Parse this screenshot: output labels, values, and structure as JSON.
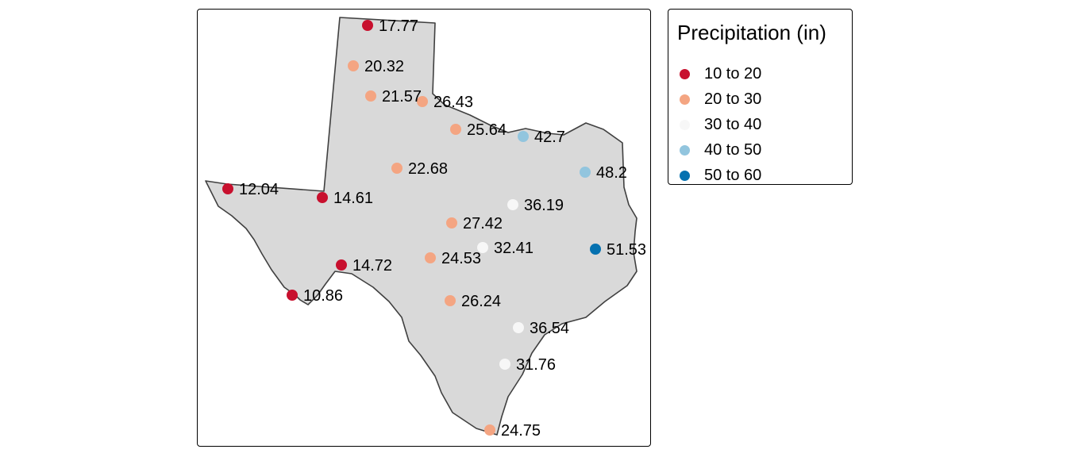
{
  "legend": {
    "title": "Precipitation (in)",
    "classes": [
      {
        "label": "10 to 20",
        "color": "#C8102E",
        "min": 10,
        "max": 20
      },
      {
        "label": "20 to 30",
        "color": "#F4A582",
        "min": 20,
        "max": 30
      },
      {
        "label": "30 to 40",
        "color": "#F7F7F7",
        "min": 30,
        "max": 40
      },
      {
        "label": "40 to 50",
        "color": "#92C5DE",
        "min": 40,
        "max": 50
      },
      {
        "label": "50 to 60",
        "color": "#0571B0",
        "min": 50,
        "max": 60
      }
    ]
  },
  "map": {
    "region_fill": "#D9D9D9",
    "region_stroke": "#404040"
  },
  "stations": [
    {
      "value": "17.77"
    },
    {
      "value": "20.32"
    },
    {
      "value": "21.57"
    },
    {
      "value": "26.43"
    },
    {
      "value": "25.64"
    },
    {
      "value": "42.7"
    },
    {
      "value": "48.2"
    },
    {
      "value": "22.68"
    },
    {
      "value": "12.04"
    },
    {
      "value": "14.61"
    },
    {
      "value": "36.19"
    },
    {
      "value": "27.42"
    },
    {
      "value": "32.41"
    },
    {
      "value": "51.53"
    },
    {
      "value": "24.53"
    },
    {
      "value": "14.72"
    },
    {
      "value": "10.86"
    },
    {
      "value": "26.24"
    },
    {
      "value": "36.54"
    },
    {
      "value": "31.76"
    },
    {
      "value": "24.75"
    }
  ]
}
